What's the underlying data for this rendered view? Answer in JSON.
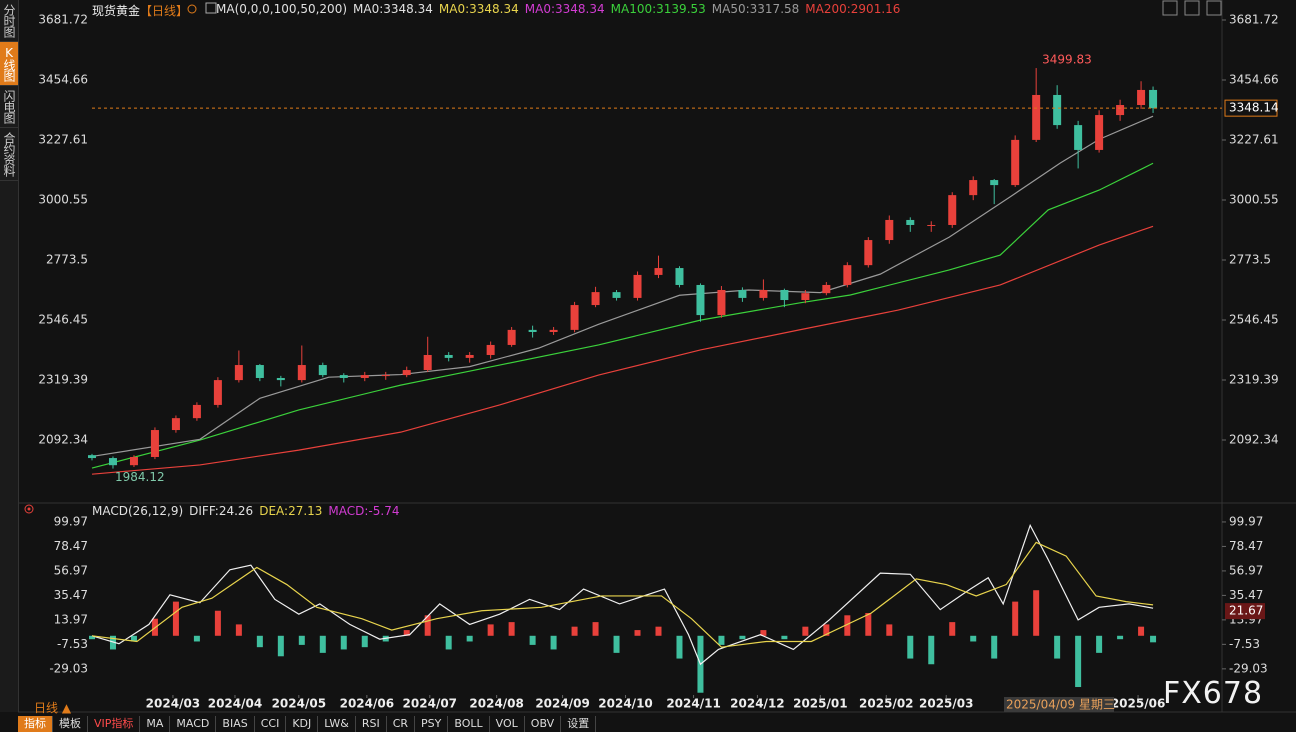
{
  "sidebar": [
    {
      "text": "分时图",
      "active": false
    },
    {
      "text": "K线图",
      "active": true
    },
    {
      "text": "闪电图",
      "active": false
    },
    {
      "text": "合约资料",
      "active": false
    }
  ],
  "chart_data": [
    {
      "type": "candlestick",
      "symbol": "现货黄金",
      "period": "【日线】",
      "legend": [
        {
          "text": "MA(0,0,0,100,50,200)",
          "color": "#e0e0e0"
        },
        {
          "text": "MA0:3348.34",
          "color": "#e0e0e0"
        },
        {
          "text": "MA0:3348.34",
          "color": "#e8d44d"
        },
        {
          "text": "MA0:3348.34",
          "color": "#d23cd2"
        },
        {
          "text": "MA100:3139.53",
          "color": "#3bd13b"
        },
        {
          "text": "MA50:3317.58",
          "color": "#9a9a9a"
        },
        {
          "text": "MA200:2901.16",
          "color": "#e8413b"
        }
      ],
      "up_color": "#e8413b",
      "down_color": "#3fbf9f",
      "x": [
        0,
        7,
        14,
        21,
        28,
        35,
        42,
        49,
        56,
        63,
        70,
        77,
        84,
        91,
        98,
        105,
        112,
        119,
        126,
        133,
        140,
        147,
        154,
        161,
        168,
        175,
        182,
        189,
        196,
        203,
        210,
        217,
        224,
        231,
        238,
        245,
        252,
        259,
        266,
        273,
        280,
        287,
        294,
        301,
        308,
        315,
        322,
        329,
        336,
        343,
        350,
        354
      ],
      "open": [
        2035,
        2024,
        1997,
        2028,
        2130,
        2175,
        2225,
        2319,
        2376,
        2327,
        2319,
        2376,
        2338,
        2327,
        2338,
        2338,
        2357,
        2414,
        2403,
        2414,
        2452,
        2509,
        2501,
        2509,
        2603,
        2652,
        2630,
        2717,
        2743,
        2679,
        2565,
        2660,
        2630,
        2660,
        2622,
        2648,
        2679,
        2754,
        2849,
        2925,
        2906,
        2906,
        3019,
        3076,
        3057,
        3228,
        3398,
        3284,
        3190,
        3322,
        3360,
        3417
      ],
      "high": [
        2040,
        2030,
        2035,
        2140,
        2185,
        2235,
        2330,
        2431,
        2380,
        2335,
        2450,
        2385,
        2345,
        2350,
        2350,
        2370,
        2483,
        2425,
        2425,
        2465,
        2520,
        2525,
        2520,
        2615,
        2672,
        2660,
        2730,
        2790,
        2750,
        2685,
        2675,
        2670,
        2700,
        2665,
        2660,
        2690,
        2765,
        2860,
        2942,
        2935,
        2920,
        3030,
        3090,
        3080,
        3245,
        3499.83,
        3435,
        3300,
        3340,
        3380,
        3450,
        3430
      ],
      "low": [
        2015,
        1984.12,
        1990,
        2020,
        2120,
        2165,
        2215,
        2310,
        2315,
        2295,
        2310,
        2330,
        2310,
        2315,
        2320,
        2330,
        2350,
        2390,
        2385,
        2400,
        2445,
        2480,
        2490,
        2500,
        2595,
        2620,
        2620,
        2705,
        2670,
        2540,
        2555,
        2615,
        2620,
        2595,
        2610,
        2640,
        2670,
        2745,
        2835,
        2880,
        2880,
        2895,
        3000,
        2985,
        3050,
        3220,
        3270,
        3120,
        3180,
        3300,
        3345,
        3330
      ],
      "close": [
        2024,
        1997,
        2028,
        2130,
        2175,
        2225,
        2319,
        2376,
        2327,
        2319,
        2376,
        2338,
        2327,
        2338,
        2338,
        2357,
        2414,
        2403,
        2414,
        2452,
        2509,
        2501,
        2509,
        2603,
        2652,
        2630,
        2717,
        2743,
        2679,
        2565,
        2660,
        2630,
        2660,
        2622,
        2648,
        2679,
        2754,
        2849,
        2925,
        2906,
        2906,
        3019,
        3076,
        3057,
        3228,
        3398,
        3284,
        3190,
        3322,
        3360,
        3417,
        3348
      ],
      "series": [
        {
          "color": "#3bd13b",
          "x": [
            0,
            36,
            69,
            103,
            136,
            169,
            203,
            236,
            253,
            286,
            303,
            319,
            336,
            354
          ],
          "values": [
            1986,
            2092,
            2206,
            2300,
            2376,
            2452,
            2546,
            2611,
            2641,
            2736,
            2792,
            2963,
            3038,
            3139.53
          ]
        },
        {
          "color": "#9a9a9a",
          "x": [
            0,
            36,
            56,
            79,
            103,
            126,
            149,
            169,
            196,
            219,
            243,
            263,
            286,
            306,
            323,
            336,
            354
          ],
          "values": [
            2030,
            2095,
            2250,
            2330,
            2340,
            2370,
            2440,
            2530,
            2640,
            2660,
            2650,
            2720,
            2860,
            3010,
            3140,
            3230,
            3317.58
          ]
        },
        {
          "color": "#e8413b",
          "x": [
            0,
            36,
            69,
            103,
            136,
            169,
            203,
            236,
            269,
            303,
            336,
            354
          ],
          "values": [
            1963,
            1998,
            2054,
            2122,
            2225,
            2338,
            2433,
            2509,
            2584,
            2679,
            2830,
            2901.16
          ]
        }
      ],
      "last_price": 3348.14,
      "xlim": [
        0,
        377
      ],
      "ylim": [
        1865.24,
        3681.72
      ],
      "yticks": [
        3681.72,
        3454.66,
        3227.61,
        3000.55,
        2773.5,
        {
          "value": 2546.45,
          "label": "2546.45"
        },
        2319.39,
        2092.34
      ]
    },
    {
      "type": "macd",
      "legend": [
        {
          "text": "MACD(26,12,9)",
          "color": "#e0e0e0"
        },
        {
          "text": "DIFF:24.26",
          "color": "#e0e0e0"
        },
        {
          "text": "DEA:27.13",
          "color": "#e8d44d"
        },
        {
          "text": "MACD:-5.74",
          "color": "#d23cd2"
        }
      ],
      "hist_up_color": "#e8413b",
      "hist_down_color": "#3fbf9f",
      "histogram": {
        "x": [
          0,
          7,
          14,
          21,
          28,
          35,
          42,
          49,
          56,
          63,
          70,
          77,
          84,
          91,
          98,
          105,
          112,
          119,
          126,
          133,
          140,
          147,
          154,
          161,
          168,
          175,
          182,
          189,
          196,
          203,
          210,
          217,
          224,
          231,
          238,
          245,
          252,
          259,
          266,
          273,
          280,
          287,
          294,
          301,
          308,
          315,
          322,
          329,
          336,
          343,
          350,
          354
        ],
        "values": [
          -3,
          -12,
          -5,
          15,
          30,
          -5,
          22,
          10,
          -10,
          -18,
          -8,
          -15,
          -12,
          -10,
          -5,
          5,
          18,
          -12,
          -5,
          10,
          12,
          -8,
          -12,
          8,
          12,
          -15,
          5,
          8,
          -20,
          -50,
          -8,
          -3,
          5,
          -3,
          8,
          10,
          18,
          20,
          10,
          -20,
          -25,
          12,
          -5,
          -20,
          30,
          40,
          -20,
          -45,
          -15,
          -3,
          8,
          -5.74
        ]
      },
      "series": [
        {
          "color": "#f0f0f0",
          "x": [
            0,
            9,
            19,
            26,
            36,
            46,
            53,
            61,
            69,
            76,
            86,
            96,
            106,
            116,
            126,
            136,
            146,
            156,
            164,
            176,
            191,
            199,
            203,
            209,
            223,
            234,
            246,
            263,
            273,
            283,
            293,
            299,
            304,
            313,
            319,
            329,
            336,
            346,
            354
          ],
          "values": [
            0,
            -7,
            10,
            36,
            29,
            58,
            62,
            32,
            19,
            28,
            10,
            -3,
            1,
            28,
            10,
            19,
            32,
            23,
            41,
            28,
            41,
            1,
            -25,
            -12,
            1,
            -12,
            14,
            55,
            54,
            23,
            41,
            51,
            28,
            97,
            67,
            14,
            25,
            28,
            24.26
          ]
        },
        {
          "color": "#e8d44d",
          "x": [
            0,
            15,
            30,
            40,
            55,
            65,
            75,
            90,
            100,
            115,
            130,
            150,
            170,
            190,
            200,
            210,
            225,
            240,
            260,
            275,
            285,
            295,
            305,
            315,
            325,
            335,
            345,
            354
          ],
          "values": [
            0,
            -5,
            25,
            33,
            60,
            45,
            25,
            15,
            5,
            15,
            22,
            25,
            35,
            35,
            15,
            -10,
            -5,
            -5,
            20,
            50,
            45,
            35,
            45,
            82,
            70,
            35,
            30,
            27.13
          ]
        }
      ],
      "cursor_value": 21.67,
      "xlim": [
        0,
        377
      ],
      "ylim": [
        -52,
        106.07
      ],
      "yticks": [
        99.97,
        78.47,
        56.97,
        35.47,
        13.97,
        -7.53,
        -29.03
      ],
      "xticks": [
        {
          "value": 27,
          "label": "2024/03"
        },
        {
          "value": 47.7,
          "label": "2024/04"
        },
        {
          "value": 69,
          "label": "2024/05"
        },
        {
          "value": 91.7,
          "label": "2024/06"
        },
        {
          "value": 112.7,
          "label": "2024/07"
        },
        {
          "value": 135,
          "label": "2024/08"
        },
        {
          "value": 157,
          "label": "2024/09"
        },
        {
          "value": 178,
          "label": "2024/10"
        },
        {
          "value": 200.7,
          "label": "2024/11"
        },
        {
          "value": 222,
          "label": "2024/12"
        },
        {
          "value": 243,
          "label": "2025/01"
        },
        {
          "value": 265,
          "label": "2025/02"
        },
        {
          "value": 285,
          "label": "2025/03"
        },
        {
          "value": 349,
          "label": "2025/06"
        }
      ]
    }
  ],
  "crosshair_label": "2025/04/09 星期三",
  "period_button": "日线 ▲",
  "toolbar": [
    {
      "text": "指标",
      "state": "active"
    },
    {
      "text": "模板",
      "state": "normal"
    },
    {
      "text": "VIP指标",
      "state": "vip"
    },
    {
      "text": "MA",
      "state": "normal"
    },
    {
      "text": "MACD",
      "state": "normal"
    },
    {
      "text": "BIAS",
      "state": "normal"
    },
    {
      "text": "CCI",
      "state": "normal"
    },
    {
      "text": "KDJ",
      "state": "normal"
    },
    {
      "text": "LW&",
      "state": "normal"
    },
    {
      "text": "RSI",
      "state": "normal"
    },
    {
      "text": "CR",
      "state": "normal"
    },
    {
      "text": "PSY",
      "state": "normal"
    },
    {
      "text": "BOLL",
      "state": "normal"
    },
    {
      "text": "VOL",
      "state": "normal"
    },
    {
      "text": "OBV",
      "state": "normal"
    },
    {
      "text": "设置",
      "state": "normal"
    }
  ],
  "watermark": "FX678"
}
